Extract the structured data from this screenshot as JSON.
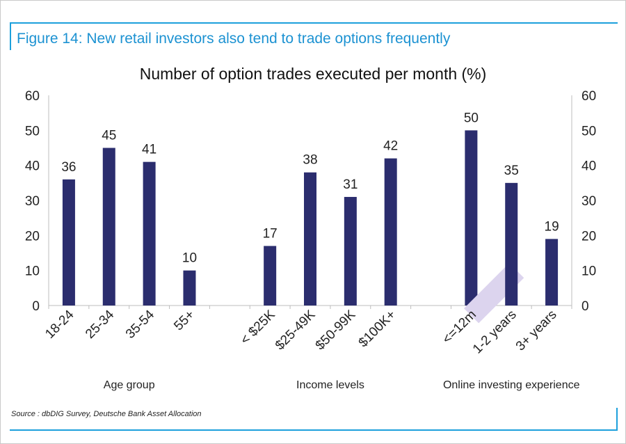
{
  "figure_title": "Figure 14: New retail investors also tend to trade options frequently",
  "source": "Source : dbDIG Survey, Deutsche Bank Asset Allocation",
  "colors": {
    "bar": "#2b2d6e",
    "accent": "#1ca0dc",
    "highlight": "#dcd4ee"
  },
  "chart_data": {
    "type": "bar",
    "title": "Number of option trades executed per month (%)",
    "ylim": [
      0,
      60
    ],
    "yticks": [
      0,
      10,
      20,
      30,
      40,
      50,
      60
    ],
    "grid": false,
    "categories": [
      "18-24",
      "25-34",
      "35-54",
      "55+",
      "< $25K",
      "$25-49K",
      "$50-99K",
      "$100K+",
      "<=12m",
      "1-2 years",
      "3+ years"
    ],
    "values": [
      36,
      45,
      41,
      10,
      17,
      38,
      31,
      42,
      50,
      35,
      19
    ],
    "groups": [
      {
        "label": "Age group",
        "categories": [
          "18-24",
          "25-34",
          "35-54",
          "55+"
        ]
      },
      {
        "label": "Income levels",
        "categories": [
          "< $25K",
          "$25-49K",
          "$50-99K",
          "$100K+"
        ]
      },
      {
        "label": "Online investing experience",
        "categories": [
          "<=12m",
          "1-2 years",
          "3+ years"
        ]
      }
    ],
    "highlighted_category": "<=12m"
  }
}
